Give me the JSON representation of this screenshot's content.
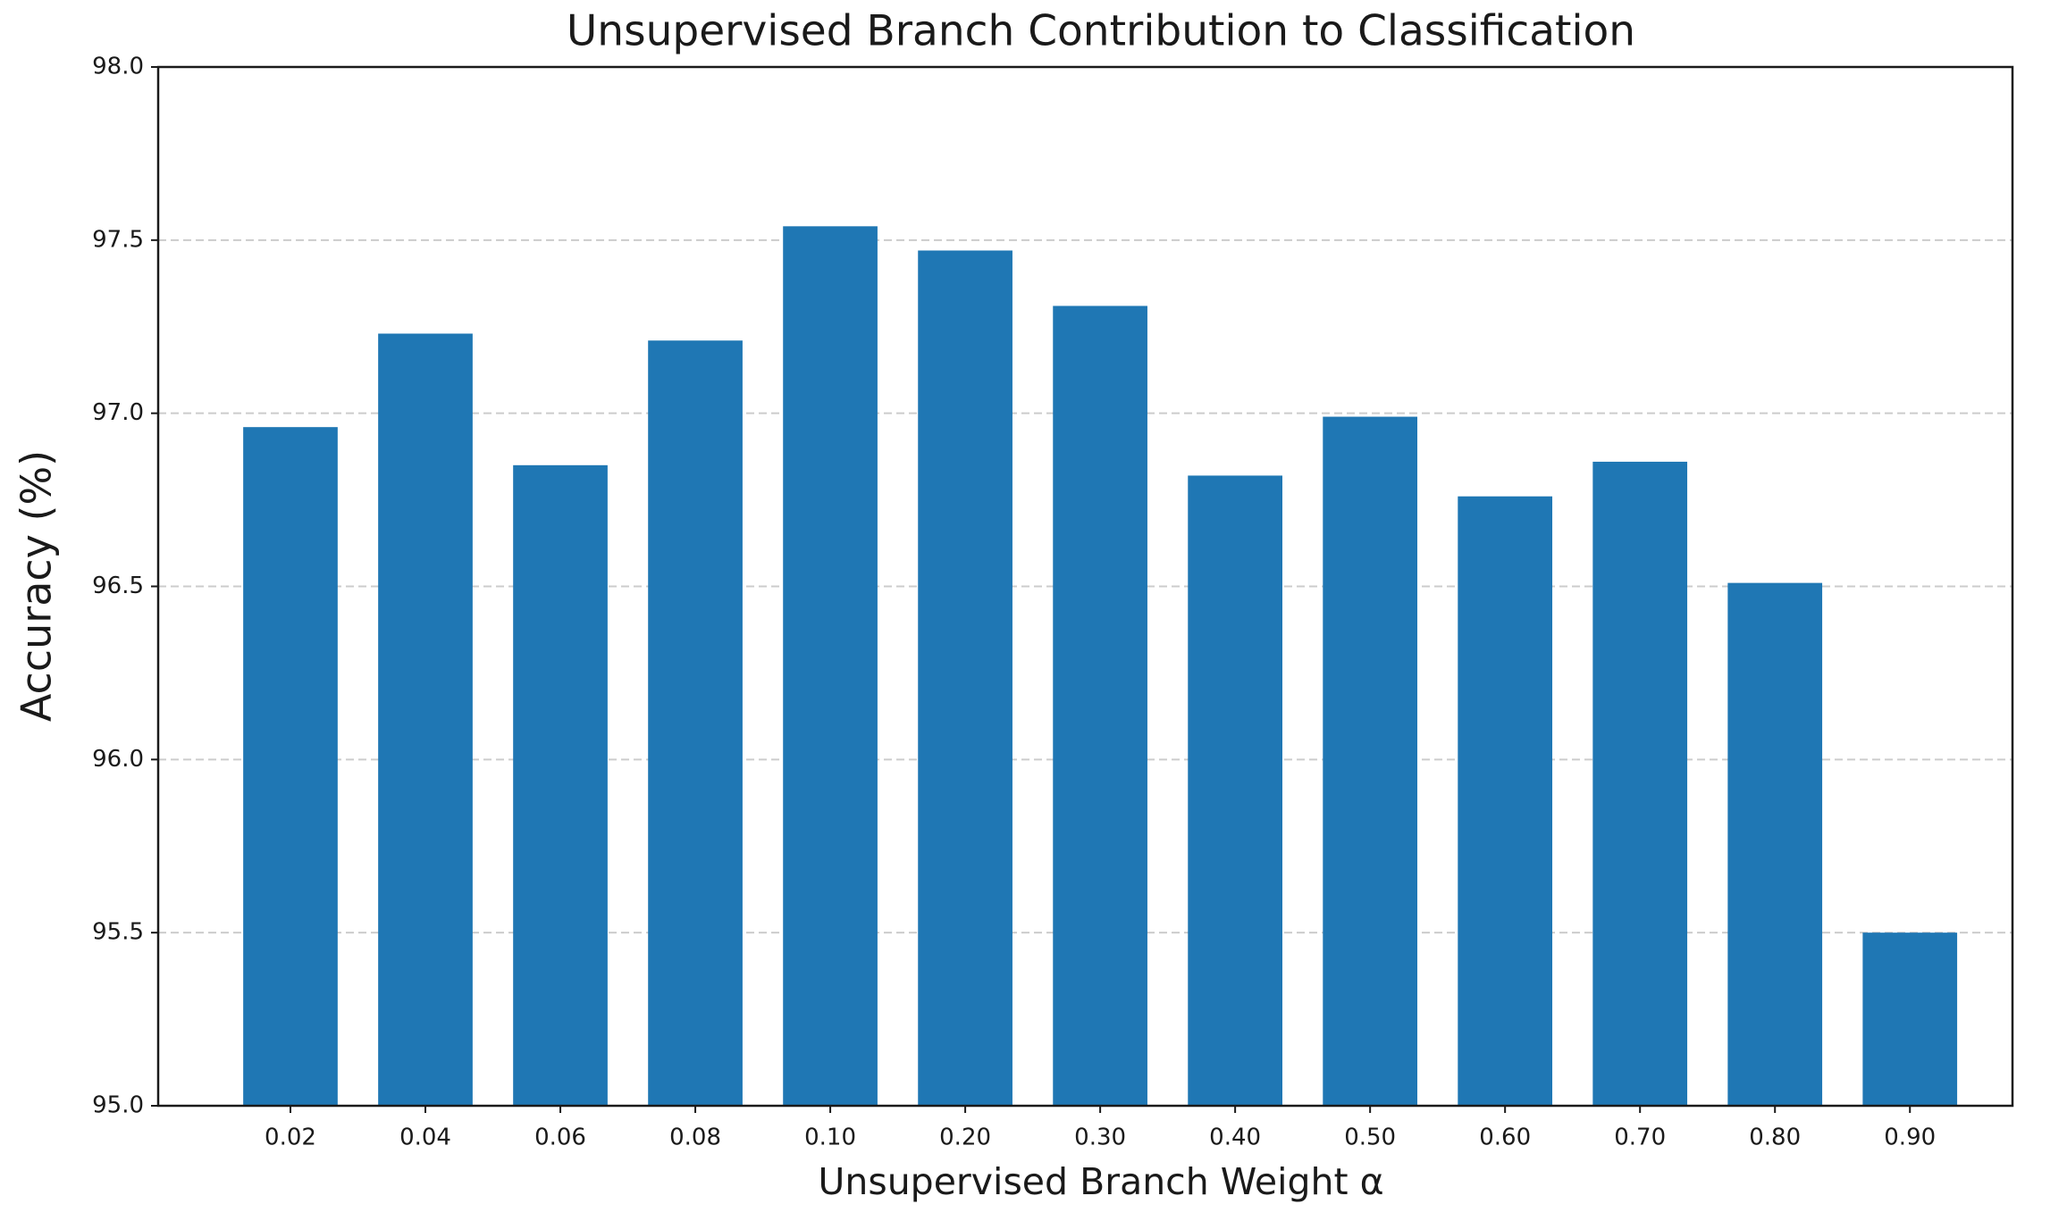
{
  "chart_data": {
    "type": "bar",
    "title": "Unsupervised Branch Contribution to Classification",
    "x_label": "Unsupervised Branch Weight α",
    "y_label": "Accuracy (%)",
    "categories": [
      "0.02",
      "0.04",
      "0.06",
      "0.08",
      "0.10",
      "0.20",
      "0.30",
      "0.40",
      "0.50",
      "0.60",
      "0.70",
      "0.80",
      "0.90"
    ],
    "values": [
      96.96,
      97.23,
      96.85,
      97.21,
      97.54,
      97.47,
      97.31,
      96.82,
      96.99,
      96.76,
      96.86,
      96.51,
      95.5
    ],
    "color": "#1f77b4",
    "ylim": [
      95,
      98
    ],
    "yticks": [
      {
        "value": 95,
        "label": "95.0"
      },
      {
        "value": 95.5,
        "label": "95.5"
      },
      {
        "value": 96,
        "label": "96.0"
      },
      {
        "value": 96.5,
        "label": "96.5"
      },
      {
        "value": 97,
        "label": "97.0"
      },
      {
        "value": 97.5,
        "label": "97.5"
      },
      {
        "value": 98,
        "label": "98.0"
      }
    ],
    "grid": true
  }
}
